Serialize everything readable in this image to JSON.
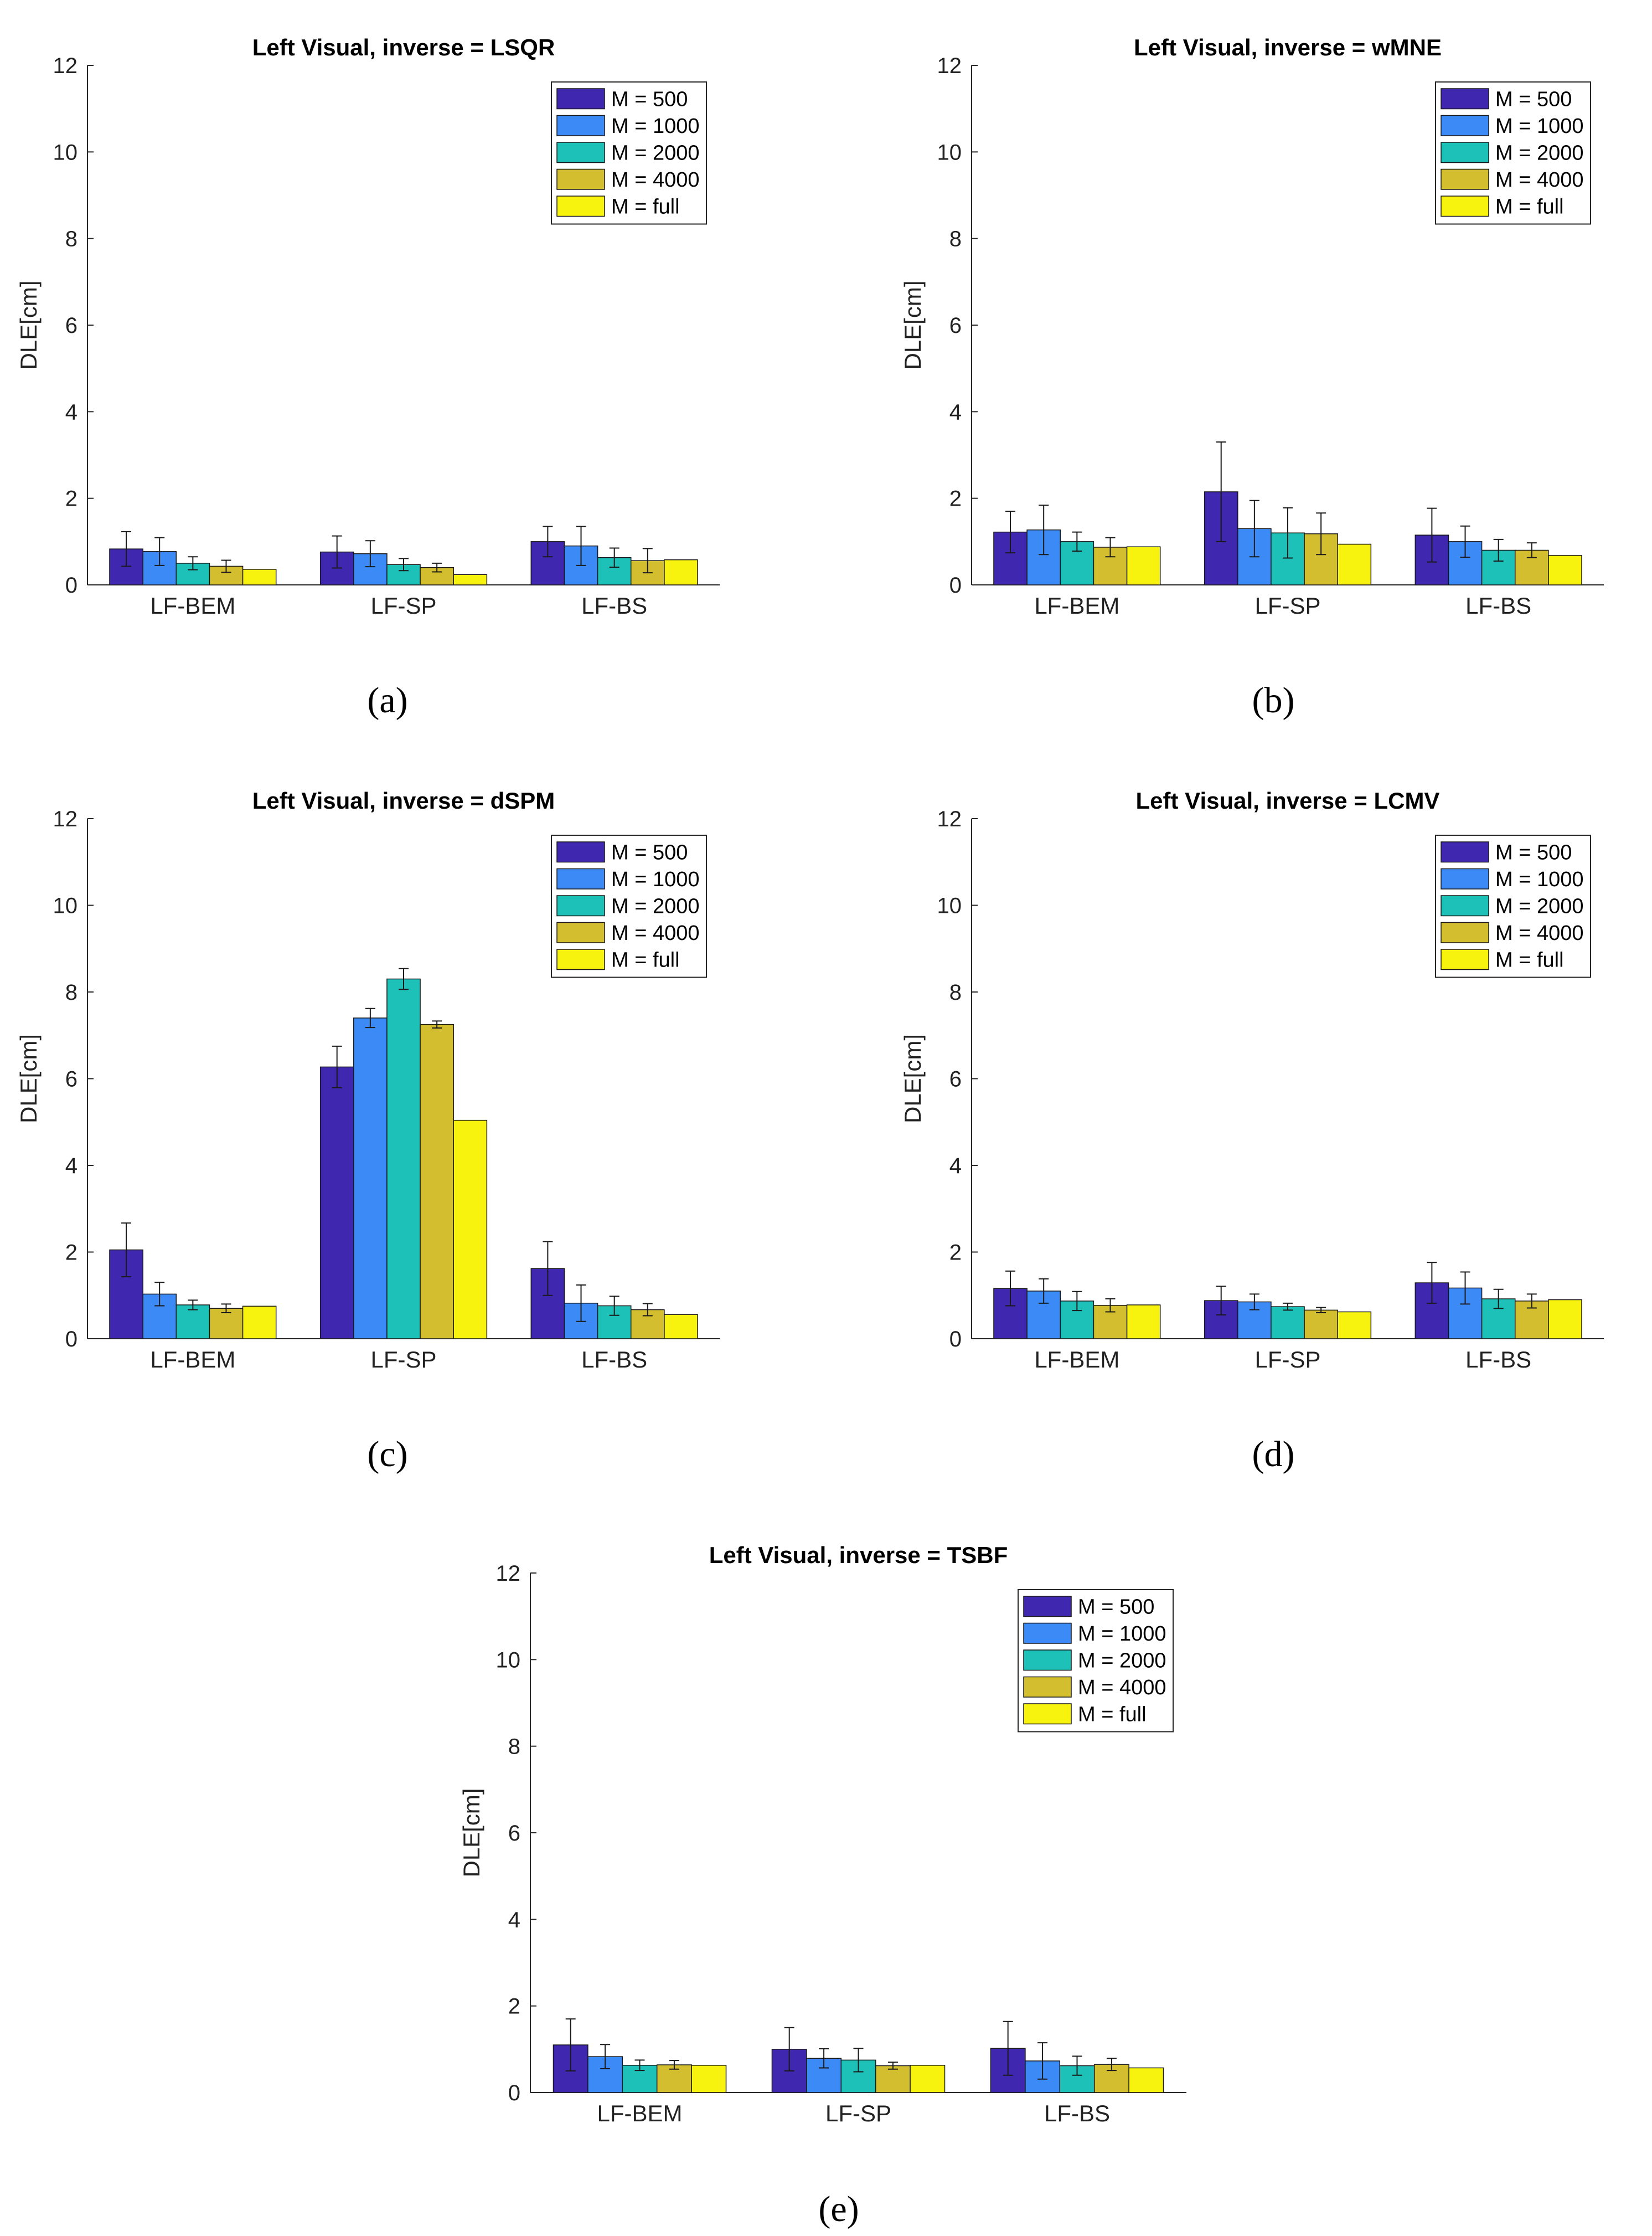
{
  "figure": {
    "colors": {
      "M = 500": "#4027AF",
      "M = 1000": "#3C8AF5",
      "M = 2000": "#1DC1B7",
      "M = 4000": "#D2BE2E",
      "M = full": "#F8F20F"
    },
    "legend_labels": [
      "M = 500",
      "M = 1000",
      "M = 2000",
      "M = 4000",
      "M = full"
    ]
  },
  "chart_data": [
    {
      "type": "bar",
      "panel": "(a)",
      "title": "Left Visual, inverse = LSQR",
      "ylabel": "DLE[cm]",
      "xlabel": "",
      "ylim": [
        0,
        12
      ],
      "yticks": [
        0,
        2,
        4,
        6,
        8,
        10,
        12
      ],
      "legend_position": "top-right",
      "categories": [
        "LF-BEM",
        "LF-SP",
        "LF-BS"
      ],
      "series": [
        {
          "name": "M = 500",
          "values": [
            0.83,
            0.76,
            1.0
          ],
          "errors": [
            0.4,
            0.37,
            0.35
          ]
        },
        {
          "name": "M = 1000",
          "values": [
            0.77,
            0.72,
            0.9
          ],
          "errors": [
            0.32,
            0.3,
            0.45
          ]
        },
        {
          "name": "M = 2000",
          "values": [
            0.5,
            0.47,
            0.63
          ],
          "errors": [
            0.15,
            0.14,
            0.22
          ]
        },
        {
          "name": "M = 4000",
          "values": [
            0.43,
            0.4,
            0.56
          ],
          "errors": [
            0.14,
            0.1,
            0.28
          ]
        },
        {
          "name": "M = full",
          "values": [
            0.36,
            0.24,
            0.58
          ],
          "errors": [
            0,
            0,
            0
          ]
        }
      ]
    },
    {
      "type": "bar",
      "panel": "(b)",
      "title": "Left Visual, inverse = wMNE",
      "ylabel": "DLE[cm]",
      "xlabel": "",
      "ylim": [
        0,
        12
      ],
      "yticks": [
        0,
        2,
        4,
        6,
        8,
        10,
        12
      ],
      "legend_position": "top-right",
      "categories": [
        "LF-BEM",
        "LF-SP",
        "LF-BS"
      ],
      "series": [
        {
          "name": "M = 500",
          "values": [
            1.22,
            2.15,
            1.15
          ],
          "errors": [
            0.48,
            1.15,
            0.62
          ]
        },
        {
          "name": "M = 1000",
          "values": [
            1.27,
            1.3,
            1.0
          ],
          "errors": [
            0.57,
            0.65,
            0.36
          ]
        },
        {
          "name": "M = 2000",
          "values": [
            1.0,
            1.2,
            0.8
          ],
          "errors": [
            0.22,
            0.58,
            0.25
          ]
        },
        {
          "name": "M = 4000",
          "values": [
            0.87,
            1.18,
            0.8
          ],
          "errors": [
            0.22,
            0.48,
            0.17
          ]
        },
        {
          "name": "M = full",
          "values": [
            0.88,
            0.94,
            0.68
          ],
          "errors": [
            0,
            0,
            0
          ]
        }
      ]
    },
    {
      "type": "bar",
      "panel": "(c)",
      "title": "Left Visual, inverse = dSPM",
      "ylabel": "DLE[cm]",
      "xlabel": "",
      "ylim": [
        0,
        12
      ],
      "yticks": [
        0,
        2,
        4,
        6,
        8,
        10,
        12
      ],
      "legend_position": "top-right",
      "categories": [
        "LF-BEM",
        "LF-SP",
        "LF-BS"
      ],
      "series": [
        {
          "name": "M = 500",
          "values": [
            2.05,
            6.27,
            1.62
          ],
          "errors": [
            0.62,
            0.48,
            0.62
          ]
        },
        {
          "name": "M = 1000",
          "values": [
            1.03,
            7.4,
            0.82
          ],
          "errors": [
            0.27,
            0.22,
            0.42
          ]
        },
        {
          "name": "M = 2000",
          "values": [
            0.78,
            8.3,
            0.76
          ],
          "errors": [
            0.11,
            0.24,
            0.22
          ]
        },
        {
          "name": "M = 4000",
          "values": [
            0.7,
            7.25,
            0.67
          ],
          "errors": [
            0.1,
            0.08,
            0.14
          ]
        },
        {
          "name": "M = full",
          "values": [
            0.75,
            5.04,
            0.56
          ],
          "errors": [
            0,
            0,
            0
          ]
        }
      ]
    },
    {
      "type": "bar",
      "panel": "(d)",
      "title": "Left Visual, inverse = LCMV",
      "ylabel": "DLE[cm]",
      "xlabel": "",
      "ylim": [
        0,
        12
      ],
      "yticks": [
        0,
        2,
        4,
        6,
        8,
        10,
        12
      ],
      "legend_position": "top-right",
      "categories": [
        "LF-BEM",
        "LF-SP",
        "LF-BS"
      ],
      "series": [
        {
          "name": "M = 500",
          "values": [
            1.16,
            0.88,
            1.29
          ],
          "errors": [
            0.4,
            0.33,
            0.47
          ]
        },
        {
          "name": "M = 1000",
          "values": [
            1.1,
            0.85,
            1.17
          ],
          "errors": [
            0.28,
            0.18,
            0.37
          ]
        },
        {
          "name": "M = 2000",
          "values": [
            0.87,
            0.74,
            0.92
          ],
          "errors": [
            0.22,
            0.08,
            0.22
          ]
        },
        {
          "name": "M = 4000",
          "values": [
            0.77,
            0.66,
            0.87
          ],
          "errors": [
            0.15,
            0.06,
            0.16
          ]
        },
        {
          "name": "M = full",
          "values": [
            0.78,
            0.62,
            0.9
          ],
          "errors": [
            0,
            0,
            0
          ]
        }
      ]
    },
    {
      "type": "bar",
      "panel": "(e)",
      "title": "Left Visual, inverse = TSBF",
      "ylabel": "DLE[cm]",
      "xlabel": "",
      "ylim": [
        0,
        12
      ],
      "yticks": [
        0,
        2,
        4,
        6,
        8,
        10,
        12
      ],
      "legend_position": "top-right",
      "categories": [
        "LF-BEM",
        "LF-SP",
        "LF-BS"
      ],
      "series": [
        {
          "name": "M = 500",
          "values": [
            1.1,
            1.0,
            1.02
          ],
          "errors": [
            0.6,
            0.5,
            0.62
          ]
        },
        {
          "name": "M = 1000",
          "values": [
            0.83,
            0.79,
            0.73
          ],
          "errors": [
            0.28,
            0.22,
            0.42
          ]
        },
        {
          "name": "M = 2000",
          "values": [
            0.63,
            0.75,
            0.62
          ],
          "errors": [
            0.12,
            0.27,
            0.22
          ]
        },
        {
          "name": "M = 4000",
          "values": [
            0.64,
            0.62,
            0.65
          ],
          "errors": [
            0.1,
            0.08,
            0.14
          ]
        },
        {
          "name": "M = full",
          "values": [
            0.63,
            0.63,
            0.57
          ],
          "errors": [
            0,
            0,
            0
          ]
        }
      ]
    }
  ]
}
